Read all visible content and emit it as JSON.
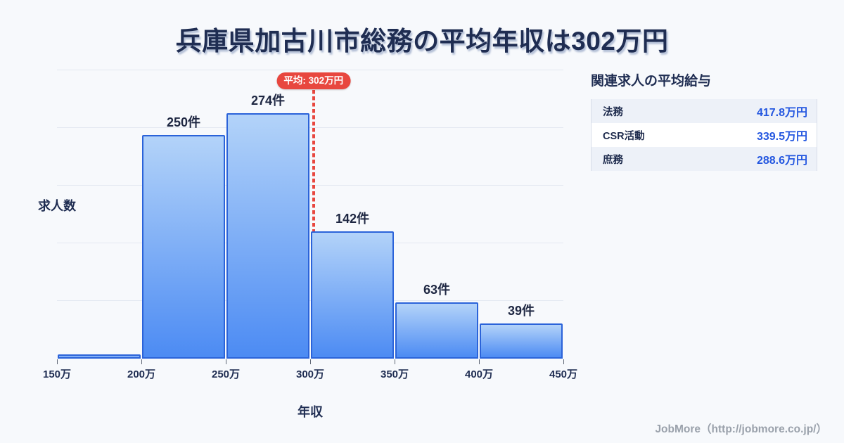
{
  "title": "兵庫県加古川市総務の平均年収は302万円",
  "chart_data": {
    "type": "bar",
    "subtype": "histogram",
    "title": "兵庫県加古川市総務の平均年収は302万円",
    "xlabel": "年収",
    "ylabel": "求人数",
    "x_min": 150,
    "x_max": 450,
    "x_unit": "万円",
    "grid": "horizontal",
    "bin_edges": [
      "150万",
      "200万",
      "250万",
      "300万",
      "350万",
      "400万",
      "450万"
    ],
    "bins": [
      {
        "range_start": 150,
        "range_end": 200,
        "value": 5,
        "label": ""
      },
      {
        "range_start": 200,
        "range_end": 250,
        "value": 250,
        "label": "250件"
      },
      {
        "range_start": 250,
        "range_end": 300,
        "value": 274,
        "label": "274件"
      },
      {
        "range_start": 300,
        "range_end": 350,
        "value": 142,
        "label": "142件"
      },
      {
        "range_start": 350,
        "range_end": 400,
        "value": 63,
        "label": "63件"
      },
      {
        "range_start": 400,
        "range_end": 450,
        "value": 39,
        "label": "39件"
      }
    ],
    "average": {
      "value": 302,
      "label": "平均: 302万円"
    }
  },
  "side_panel": {
    "title": "関連求人の平均給与",
    "rows": [
      {
        "label": "法務",
        "value": "417.8万円"
      },
      {
        "label": "CSR活動",
        "value": "339.5万円"
      },
      {
        "label": "庶務",
        "value": "288.6万円"
      }
    ]
  },
  "footer": {
    "credit": "JobMore（http://jobmore.co.jp/）"
  },
  "colors": {
    "background": "#f7f9fc",
    "title_text": "#1f2d52",
    "bar_fill_top": "#b3d3f9",
    "bar_fill_bottom": "#4c8bf3",
    "bar_border": "#2b63d9",
    "gridline": "#e3e8f1",
    "average_red": "#e8473f",
    "panel_value_blue": "#2457e0",
    "panel_row_alt_bg": "#edf1f8",
    "footer_text": "#9aa1ab"
  }
}
